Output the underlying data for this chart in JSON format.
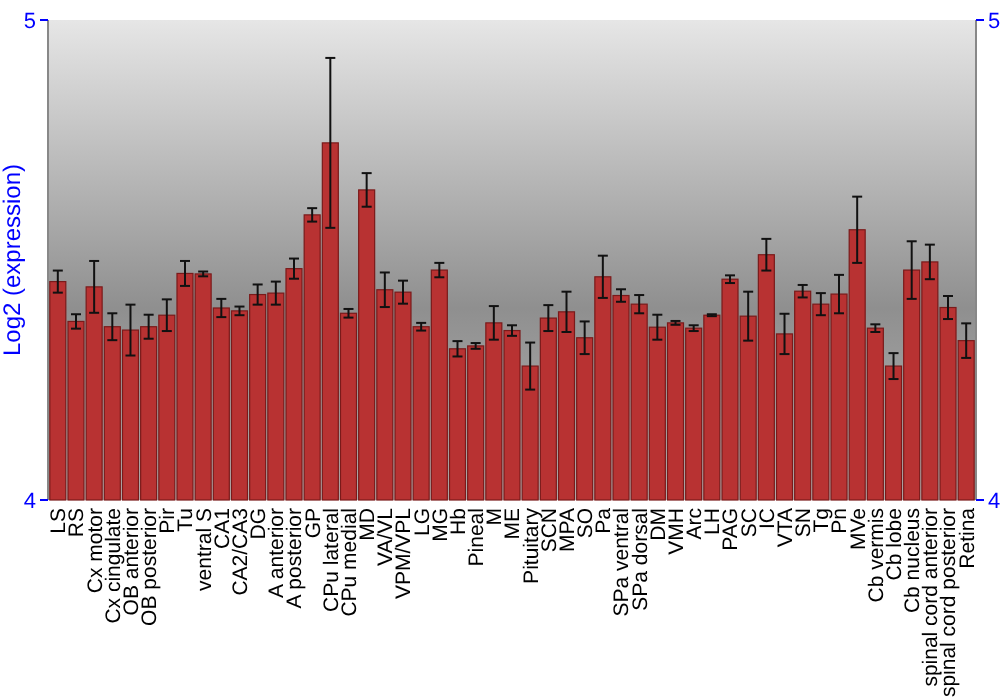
{
  "chart_data": {
    "type": "bar",
    "ylabel": "Log2 (expression)",
    "categories": [
      "LS",
      "RS",
      "Cx motor",
      "Cx cingulate",
      "OB anterior",
      "OB posterior",
      "Pir",
      "Tu",
      "ventral S",
      "CA1",
      "CA2/CA3",
      "DG",
      "A anterior",
      "A posterior",
      "GP",
      "CPu lateral",
      "CPu medial",
      "MD",
      "VA/VL",
      "VPM/VPL",
      "LG",
      "MG",
      "Hb",
      "Pineal",
      "M",
      "ME",
      "Pituitary",
      "SCN",
      "MPA",
      "SO",
      "Pa",
      "SPa ventral",
      "SPa dorsal",
      "DM",
      "VMH",
      "Arc",
      "LH",
      "PAG",
      "SC",
      "IC",
      "VTA",
      "SN",
      "Tg",
      "Pn",
      "MVe",
      "Cb vermis",
      "Cb lobe",
      "Cb nucleus",
      "spinal cord anterior",
      "spinal cord posterior",
      "Retina"
    ],
    "values": [
      4.455,
      4.372,
      4.444,
      4.361,
      4.354,
      4.361,
      4.385,
      4.472,
      4.471,
      4.4,
      4.394,
      4.428,
      4.431,
      4.482,
      4.594,
      4.744,
      4.389,
      4.646,
      4.438,
      4.433,
      4.361,
      4.479,
      4.315,
      4.321,
      4.369,
      4.353,
      4.279,
      4.379,
      4.392,
      4.338,
      4.465,
      4.426,
      4.408,
      4.36,
      4.369,
      4.358,
      4.385,
      4.46,
      4.383,
      4.511,
      4.346,
      4.435,
      4.408,
      4.429,
      4.563,
      4.358,
      4.279,
      4.479,
      4.496,
      4.401,
      4.332
    ],
    "errors": [
      0.023,
      0.015,
      0.054,
      0.028,
      0.053,
      0.025,
      0.033,
      0.026,
      0.005,
      0.019,
      0.009,
      0.021,
      0.024,
      0.021,
      0.014,
      0.177,
      0.009,
      0.035,
      0.036,
      0.024,
      0.008,
      0.015,
      0.016,
      0.006,
      0.035,
      0.011,
      0.049,
      0.027,
      0.042,
      0.034,
      0.044,
      0.013,
      0.019,
      0.026,
      0.004,
      0.006,
      0.002,
      0.008,
      0.051,
      0.033,
      0.042,
      0.013,
      0.023,
      0.04,
      0.069,
      0.008,
      0.027,
      0.06,
      0.036,
      0.024,
      0.036
    ],
    "color": "#b83232",
    "ylim": [
      4,
      5
    ],
    "yticks": [
      4,
      5
    ],
    "y2lim": [
      4,
      5
    ],
    "y2ticks": [
      4,
      5
    ],
    "grid": false
  }
}
